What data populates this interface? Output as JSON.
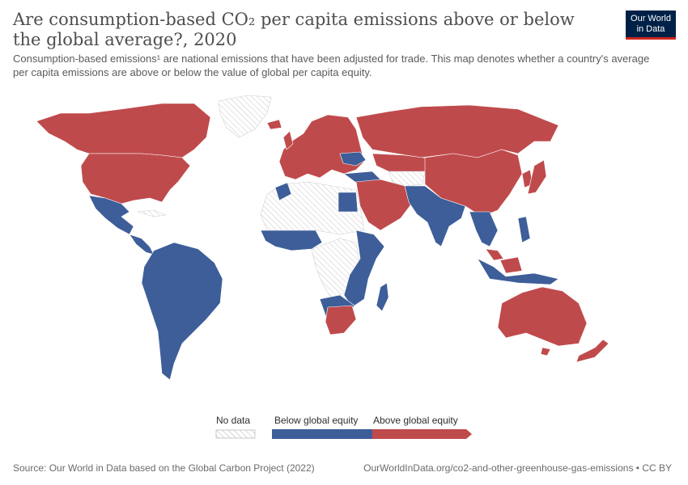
{
  "header": {
    "title": "Are consumption-based CO₂ per capita emissions above or below the global average?, 2020",
    "subtitle": "Consumption-based emissions¹ are national emissions that have been adjusted for trade. This map denotes whether a country's average per capita emissions are above or below the value of global per capita equity."
  },
  "logo": {
    "line1": "Our World",
    "line2": "in Data",
    "bg_color": "#002147",
    "accent_color": "#ce261e"
  },
  "legend": {
    "items": [
      {
        "label": "No data",
        "color": "hatched-grey"
      },
      {
        "label": "Below global equity",
        "color": "#3d5e99"
      },
      {
        "label": "Above global equity",
        "color": "#bf4a4c"
      }
    ]
  },
  "footer": {
    "source": "Source: Our World in Data based on the Global Carbon Project (2022)",
    "url": "OurWorldInData.org/co2-and-other-greenhouse-gas-emissions • CC BY"
  },
  "colors": {
    "below": "#3d5e99",
    "above": "#bf4a4c",
    "nodata_stroke": "#cfcfcf",
    "border": "#ffffff"
  },
  "regions": [
    {
      "name": "Canada",
      "category": "above"
    },
    {
      "name": "United States",
      "category": "above"
    },
    {
      "name": "Greenland",
      "category": "nodata"
    },
    {
      "name": "Mexico",
      "category": "below"
    },
    {
      "name": "Central America",
      "category": "below"
    },
    {
      "name": "South America",
      "category": "below"
    },
    {
      "name": "Europe",
      "category": "above"
    },
    {
      "name": "Russia",
      "category": "above"
    },
    {
      "name": "North Africa",
      "category": "nodata"
    },
    {
      "name": "West Africa",
      "category": "below"
    },
    {
      "name": "East Africa",
      "category": "below"
    },
    {
      "name": "Central Africa",
      "category": "nodata"
    },
    {
      "name": "South Africa",
      "category": "above"
    },
    {
      "name": "Middle East",
      "category": "above"
    },
    {
      "name": "Kazakhstan",
      "category": "above"
    },
    {
      "name": "India",
      "category": "below"
    },
    {
      "name": "China",
      "category": "above"
    },
    {
      "name": "Southeast Asia",
      "category": "below"
    },
    {
      "name": "Japan",
      "category": "above"
    },
    {
      "name": "Australia",
      "category": "above"
    },
    {
      "name": "New Zealand",
      "category": "above"
    }
  ]
}
